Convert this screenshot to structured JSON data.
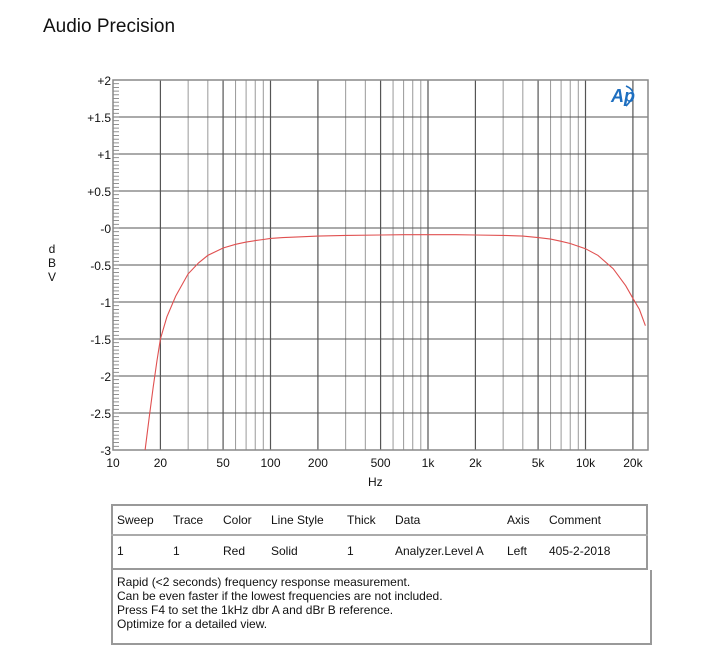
{
  "header": {
    "title": "Audio Precision"
  },
  "logo": {
    "text": "Ap",
    "color": "#1e6fc0"
  },
  "chart_data": {
    "type": "line",
    "title": "Audio Precision",
    "xlabel": "Hz",
    "ylabel": "dBV",
    "xscale": "log",
    "xlim": [
      10,
      24000
    ],
    "ylim": [
      -3,
      2
    ],
    "grid": true,
    "x_tick_labels": [
      "10",
      "20",
      "50",
      "100",
      "200",
      "500",
      "1k",
      "2k",
      "5k",
      "10k",
      "20k"
    ],
    "y_tick_labels": [
      "+2",
      "+1.5",
      "+1",
      "+0.5",
      "-0",
      "-0.5",
      "-1",
      "-1.5",
      "-2",
      "-2.5",
      "-3"
    ],
    "series": [
      {
        "name": "Analyzer.Level A",
        "color": "#e05050",
        "x": [
          16,
          17,
          18,
          19,
          20,
          22,
          25,
          30,
          35,
          40,
          50,
          60,
          70,
          80,
          90,
          100,
          120,
          150,
          200,
          300,
          500,
          700,
          1000,
          1500,
          2000,
          3000,
          4000,
          5000,
          6000,
          7000,
          8000,
          10000,
          12000,
          15000,
          18000,
          20000,
          22000,
          24000
        ],
        "values": [
          -3.0,
          -2.55,
          -2.15,
          -1.8,
          -1.5,
          -1.2,
          -0.92,
          -0.62,
          -0.47,
          -0.37,
          -0.27,
          -0.22,
          -0.19,
          -0.17,
          -0.155,
          -0.14,
          -0.13,
          -0.12,
          -0.11,
          -0.1,
          -0.095,
          -0.09,
          -0.09,
          -0.09,
          -0.095,
          -0.1,
          -0.11,
          -0.13,
          -0.15,
          -0.18,
          -0.21,
          -0.28,
          -0.37,
          -0.55,
          -0.78,
          -0.95,
          -1.1,
          -1.32
        ]
      }
    ]
  },
  "legend_table": {
    "headers": [
      "Sweep",
      "Trace",
      "Color",
      "Line Style",
      "Thick",
      "Data",
      "Axis",
      "Comment"
    ],
    "rows": [
      [
        "1",
        "1",
        "Red",
        "Solid",
        "1",
        "Analyzer.Level A",
        "Left",
        "405-2-2018"
      ]
    ]
  },
  "notes": [
    "Rapid (<2 seconds) frequency response measurement.",
    "Can be even faster if the lowest frequencies are not included.",
    "Press F4 to set the 1kHz dbr A and dBr B reference.",
    "Optimize for a detailed view."
  ]
}
